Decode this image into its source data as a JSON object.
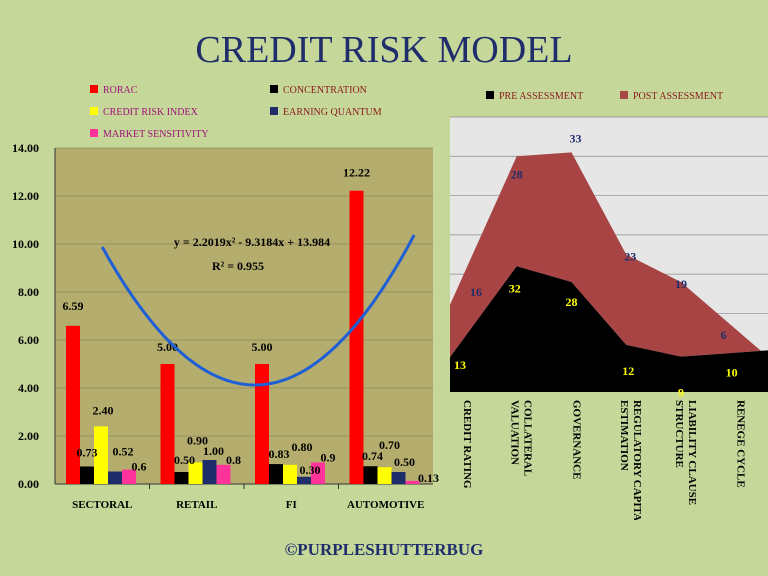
{
  "page": {
    "title": "CREDIT RISK MODEL",
    "footer": "©PURPLESHUTTERBUG"
  },
  "chart_data": [
    {
      "type": "bar",
      "categories": [
        "SECTORAL",
        "RETAIL",
        "FI",
        "AUTOMOTIVE"
      ],
      "series": [
        {
          "name": "RORAC",
          "color": "#ff0000",
          "values": [
            6.59,
            5.0,
            5.0,
            12.22
          ],
          "labels": [
            "6.59",
            "5.00",
            "5.00",
            "12.22"
          ]
        },
        {
          "name": "CONCENTRATION",
          "color": "#000000",
          "values": [
            0.73,
            0.5,
            0.83,
            0.74
          ],
          "labels": [
            "0.73",
            "0.50",
            "0.83",
            "0.74"
          ]
        },
        {
          "name": "CREDIT RISK INDEX",
          "color": "#ffff00",
          "values": [
            2.4,
            0.9,
            0.8,
            0.7
          ],
          "labels": [
            "2.40",
            "0.90",
            "0.80",
            "0.70"
          ]
        },
        {
          "name": "EARNING QUANTUM",
          "color": "#1f2d6b",
          "values": [
            0.52,
            1.0,
            0.3,
            0.5
          ],
          "labels": [
            "0.52",
            "1.00",
            "0.30",
            "0.50"
          ]
        },
        {
          "name": "MARKET SENSITIVITY",
          "color": "#ff3399",
          "values": [
            0.6,
            0.8,
            0.9,
            0.13
          ],
          "labels": [
            "0.6",
            "0.8",
            "0.9",
            "0.13"
          ]
        }
      ],
      "ylim": [
        0,
        14
      ],
      "yticks": [
        "0.00",
        "2.00",
        "4.00",
        "6.00",
        "8.00",
        "10.00",
        "12.00",
        "14.00"
      ],
      "trendline": {
        "equation": "y = 2.2019x² - 9.3184x + 13.984",
        "r2": "R² = 0.955",
        "coefficients": [
          2.2019,
          -9.3184,
          13.984
        ],
        "color": "#1f5fd6"
      },
      "plot_background": "#b5ad6e",
      "legend_position": "top"
    },
    {
      "type": "area",
      "categories": [
        "CREDIT RATING",
        "COLLATERAL VALUATION",
        "GOVERNANCE",
        "REGULATORY CAPITAL ESTIMATION",
        "LIABILITY CLAUSE STRUCTURE",
        "RENEGE CYCLE"
      ],
      "category_lines": [
        [
          "CREDIT RATING"
        ],
        [
          "COLLATERAL",
          "VALUATION"
        ],
        [
          "GOVERNANCE"
        ],
        [
          "REGULATORY CAPITAL",
          "ESTIMATION"
        ],
        [
          "LIABILITY CLAUSE",
          "STRUCTURE"
        ],
        [
          "RENEGE CYCLE"
        ]
      ],
      "series": [
        {
          "name": "PRE ASSESSMENT",
          "color": "#000000",
          "label_color": "#ffff00",
          "values": [
            13,
            32,
            28,
            12,
            9,
            10
          ]
        },
        {
          "name": "POST ASSESSMENT",
          "color": "#a84444",
          "label_color": "#1f2d6b",
          "values": [
            16,
            28,
            33,
            23,
            19,
            6
          ]
        }
      ],
      "stacked": true,
      "plot_background": "#e6e6e6",
      "legend_position": "top"
    }
  ]
}
